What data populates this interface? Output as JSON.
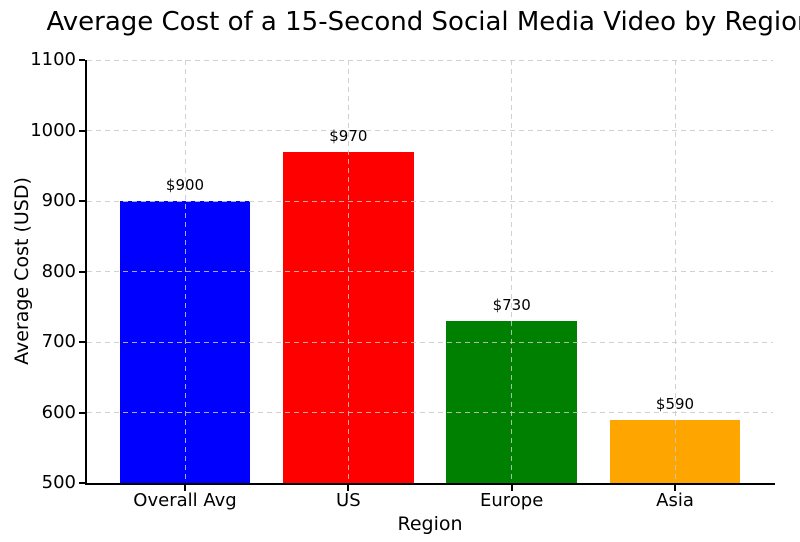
{
  "chart_data": {
    "type": "bar",
    "title": "Average Cost of a 15-Second Social Media Video by Region",
    "xlabel": "Region",
    "ylabel": "Average Cost (USD)",
    "categories": [
      "Overall Avg",
      "US",
      "Europe",
      "Asia"
    ],
    "values": [
      900,
      970,
      730,
      590
    ],
    "value_labels": [
      "$900",
      "$970",
      "$730",
      "$590"
    ],
    "bar_colors": [
      "#0000ff",
      "#ff0000",
      "#008000",
      "#ffa500"
    ],
    "ylim": [
      500,
      1100
    ],
    "yticks": [
      500,
      600,
      700,
      800,
      900,
      1000,
      1100
    ],
    "grid": {
      "style": "dashed",
      "color": "#cccccc",
      "x_grid": true,
      "y_grid": true
    },
    "legend": "none",
    "spines": [
      "left",
      "bottom"
    ],
    "background": "#ffffff"
  }
}
